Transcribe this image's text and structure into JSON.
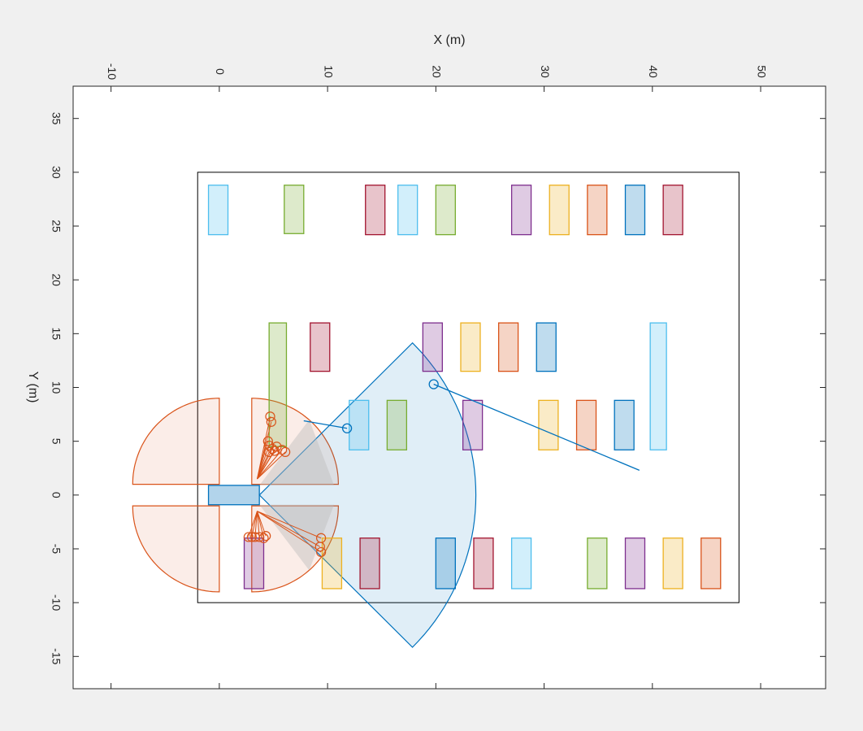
{
  "chart_data": {
    "type": "scatter",
    "title": "",
    "xlabel": "X (m)",
    "ylabel": "Y (m)",
    "xlim": [
      -13.5,
      56
    ],
    "ylim": [
      -18,
      38
    ],
    "x_ticks": [
      -10,
      0,
      10,
      20,
      30,
      40,
      50
    ],
    "y_ticks": [
      -15,
      -10,
      -5,
      0,
      5,
      10,
      15,
      20,
      25,
      30,
      35
    ],
    "x_tick_labels": [
      "-10",
      "0",
      "10",
      "20",
      "30",
      "40",
      "50"
    ],
    "y_tick_labels": [
      "-15",
      "-10",
      "-5",
      "0",
      "5",
      "10",
      "15",
      "20",
      "25",
      "30",
      "35"
    ],
    "grid": false,
    "parking_lot_boundary": {
      "x": [
        -2,
        48
      ],
      "y": [
        -10,
        30
      ]
    },
    "ego_vehicle": {
      "x": [
        -1,
        3.7
      ],
      "y": [
        -0.9,
        0.9
      ],
      "color": "#0072BD"
    },
    "parked_vehicles": [
      {
        "x": [
          -1,
          0.8
        ],
        "y": [
          24.2,
          28.8
        ],
        "color": "#4DBEEE"
      },
      {
        "x": [
          6,
          7.8
        ],
        "y": [
          24.3,
          28.8
        ],
        "color": "#77AC30"
      },
      {
        "x": [
          13.5,
          15.3
        ],
        "y": [
          24.2,
          28.8
        ],
        "color": "#A2142F"
      },
      {
        "x": [
          16.5,
          18.3
        ],
        "y": [
          24.2,
          28.8
        ],
        "color": "#4DBEEE"
      },
      {
        "x": [
          20,
          21.8
        ],
        "y": [
          24.2,
          28.8
        ],
        "color": "#77AC30"
      },
      {
        "x": [
          27,
          28.8
        ],
        "y": [
          24.2,
          28.8
        ],
        "color": "#7E2F8E"
      },
      {
        "x": [
          30.5,
          32.3
        ],
        "y": [
          24.2,
          28.8
        ],
        "color": "#EDB120"
      },
      {
        "x": [
          34,
          35.8
        ],
        "y": [
          24.2,
          28.8
        ],
        "color": "#D95319"
      },
      {
        "x": [
          37.5,
          39.3
        ],
        "y": [
          24.2,
          28.8
        ],
        "color": "#0072BD"
      },
      {
        "x": [
          41,
          42.8
        ],
        "y": [
          24.2,
          28.8
        ],
        "color": "#A2142F"
      },
      {
        "x": [
          4.6,
          6.2
        ],
        "y": [
          4.5,
          16.0
        ],
        "color": "#77AC30"
      },
      {
        "x": [
          8.4,
          10.2
        ],
        "y": [
          11.5,
          16.0
        ],
        "color": "#A2142F"
      },
      {
        "x": [
          18.8,
          20.6
        ],
        "y": [
          11.5,
          16.0
        ],
        "color": "#7E2F8E"
      },
      {
        "x": [
          22.3,
          24.1
        ],
        "y": [
          11.5,
          16.0
        ],
        "color": "#EDB120"
      },
      {
        "x": [
          25.8,
          27.6
        ],
        "y": [
          11.5,
          16.0
        ],
        "color": "#D95319"
      },
      {
        "x": [
          29.3,
          31.1
        ],
        "y": [
          11.5,
          16.0
        ],
        "color": "#0072BD"
      },
      {
        "x": [
          39.8,
          41.3
        ],
        "y": [
          4.2,
          16.0
        ],
        "color": "#4DBEEE"
      },
      {
        "x": [
          12,
          13.8
        ],
        "y": [
          4.2,
          8.8
        ],
        "color": "#4DBEEE"
      },
      {
        "x": [
          15.5,
          17.3
        ],
        "y": [
          4.2,
          8.8
        ],
        "color": "#77AC30"
      },
      {
        "x": [
          22.5,
          24.3
        ],
        "y": [
          4.2,
          8.8
        ],
        "color": "#7E2F8E"
      },
      {
        "x": [
          29.5,
          31.3
        ],
        "y": [
          4.2,
          8.8
        ],
        "color": "#EDB120"
      },
      {
        "x": [
          33,
          34.8
        ],
        "y": [
          4.2,
          8.8
        ],
        "color": "#D95319"
      },
      {
        "x": [
          36.5,
          38.3
        ],
        "y": [
          4.2,
          8.8
        ],
        "color": "#0072BD"
      },
      {
        "x": [
          2.3,
          4.1
        ],
        "y": [
          -8.7,
          -4.0
        ],
        "color": "#7E2F8E"
      },
      {
        "x": [
          9.5,
          11.3
        ],
        "y": [
          -8.7,
          -4.0
        ],
        "color": "#EDB120"
      },
      {
        "x": [
          13,
          14.8
        ],
        "y": [
          -8.7,
          -4.0
        ],
        "color": "#A2142F"
      },
      {
        "x": [
          20,
          21.8
        ],
        "y": [
          -8.7,
          -4.0
        ],
        "color": "#0072BD"
      },
      {
        "x": [
          23.5,
          25.3
        ],
        "y": [
          -8.7,
          -4.0
        ],
        "color": "#A2142F"
      },
      {
        "x": [
          27,
          28.8
        ],
        "y": [
          -8.7,
          -4.0
        ],
        "color": "#4DBEEE"
      },
      {
        "x": [
          34,
          35.8
        ],
        "y": [
          -8.7,
          -4.0
        ],
        "color": "#77AC30"
      },
      {
        "x": [
          37.5,
          39.3
        ],
        "y": [
          -8.7,
          -4.0
        ],
        "color": "#7E2F8E"
      },
      {
        "x": [
          41,
          42.8
        ],
        "y": [
          -8.7,
          -4.0
        ],
        "color": "#EDB120"
      },
      {
        "x": [
          44.5,
          46.3
        ],
        "y": [
          -8.7,
          -4.0
        ],
        "color": "#D95319"
      }
    ],
    "radar_coverage": {
      "color": "#0072BD",
      "center": [
        3.7,
        0
      ],
      "range": [
        0,
        20
      ],
      "azimuth_deg": [
        -45,
        45
      ]
    },
    "ultrasonic_coverage": {
      "color": "#D95319",
      "sectors": [
        {
          "center": [
            0,
            1
          ],
          "range": [
            0,
            8
          ],
          "azimuth_deg": [
            90,
            180
          ]
        },
        {
          "center": [
            3,
            1
          ],
          "range": [
            0,
            8
          ],
          "azimuth_deg": [
            0,
            90
          ]
        },
        {
          "center": [
            0,
            -1
          ],
          "range": [
            0,
            8
          ],
          "azimuth_deg": [
            180,
            270
          ]
        },
        {
          "center": [
            3,
            -1
          ],
          "range": [
            0,
            8
          ],
          "azimuth_deg": [
            270,
            360
          ]
        }
      ]
    },
    "ultrasonic_shaded_regions": [
      {
        "points": [
          [
            3.7,
            0.9
          ],
          [
            10.6,
            0.9
          ],
          [
            8.3,
            7.0
          ]
        ],
        "color": "#BDBDBD"
      },
      {
        "points": [
          [
            3.7,
            -0.9
          ],
          [
            10.6,
            -0.9
          ],
          [
            8.3,
            -7.0
          ]
        ],
        "color": "#BDBDBD"
      }
    ],
    "radar_detections": {
      "color": "#0072BD",
      "points": [
        {
          "x": 11.8,
          "y": 6.2,
          "vx": -4.0,
          "vy": 0.7
        },
        {
          "x": 19.8,
          "y": 10.3,
          "vx": 19.0,
          "vy": -8.0
        }
      ]
    },
    "ultrasonic_detections": {
      "color": "#D95319",
      "origins": [
        [
          3.5,
          1.5
        ],
        [
          3.5,
          -1.5
        ]
      ],
      "points": [
        [
          4.7,
          7.3
        ],
        [
          4.8,
          6.8
        ],
        [
          4.5,
          5.0
        ],
        [
          4.6,
          4.6
        ],
        [
          4.9,
          4.3
        ],
        [
          5.1,
          4.1
        ],
        [
          5.8,
          4.2
        ],
        [
          6.1,
          4.0
        ],
        [
          5.3,
          4.5
        ],
        [
          4.6,
          4.0
        ],
        [
          2.7,
          -3.9
        ],
        [
          3.0,
          -3.9
        ],
        [
          3.3,
          -3.9
        ],
        [
          3.7,
          -3.9
        ],
        [
          4.1,
          -4.0
        ],
        [
          4.3,
          -3.8
        ],
        [
          9.4,
          -4.0
        ],
        [
          9.3,
          -4.8
        ],
        [
          9.4,
          -5.3
        ]
      ]
    }
  }
}
